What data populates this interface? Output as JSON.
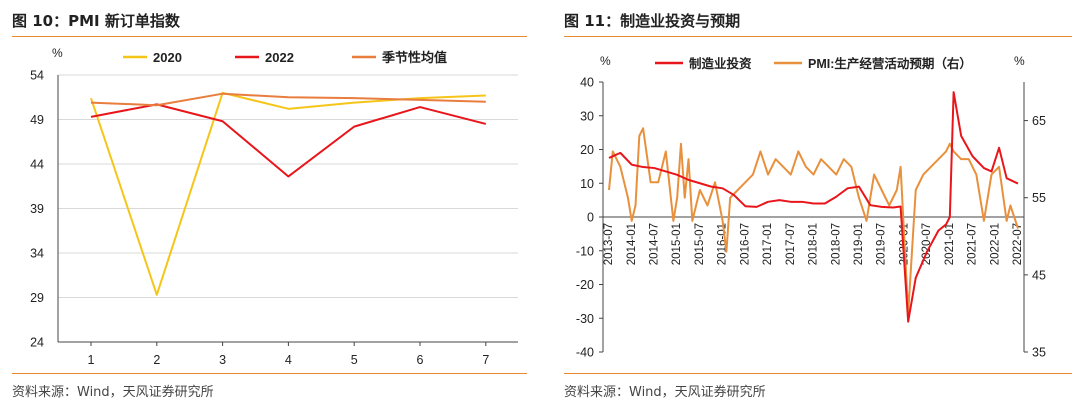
{
  "chart_data": [
    {
      "type": "line",
      "title": "图 10：PMI 新订单指数",
      "source": "资料来源：Wind，天风证券研究所",
      "ylabel": "%",
      "ylim": [
        24,
        54
      ],
      "yticks": [
        24,
        29,
        34,
        39,
        44,
        49,
        54
      ],
      "categories": [
        "1",
        "2",
        "3",
        "4",
        "5",
        "6",
        "7"
      ],
      "grid": true,
      "legend": "top",
      "series": [
        {
          "name": "2020",
          "color": "#f5c518",
          "values": [
            51.4,
            29.3,
            52.0,
            50.2,
            50.9,
            51.4,
            51.7
          ]
        },
        {
          "name": "2022",
          "color": "#e8161b",
          "values": [
            49.3,
            50.7,
            48.8,
            42.6,
            48.2,
            50.4,
            48.5
          ]
        },
        {
          "name": "季节性均值",
          "color": "#e87d3e",
          "values": [
            50.9,
            50.6,
            51.9,
            51.5,
            51.4,
            51.2,
            51.0
          ]
        }
      ]
    },
    {
      "type": "line",
      "title": "图 11：制造业投资与预期",
      "source": "资料来源：Wind，天风证券研究所",
      "ylabel_left": "%",
      "ylabel_right": "%",
      "ylim_left": [
        -40,
        40
      ],
      "yticks_left": [
        -40,
        -30,
        -20,
        -10,
        0,
        10,
        20,
        30,
        40
      ],
      "ylim_right": [
        35,
        70
      ],
      "yticks_right": [
        35,
        45,
        55,
        65
      ],
      "x_tick_labels": [
        "2013-07",
        "2014-01",
        "2014-07",
        "2015-01",
        "2015-07",
        "2016-01",
        "2016-07",
        "2017-01",
        "2017-07",
        "2018-01",
        "2018-07",
        "2019-01",
        "2019-07",
        "2020-01",
        "2020-07",
        "2021-01",
        "2021-07",
        "2022-01",
        "2022-07"
      ],
      "legend": "top",
      "series": [
        {
          "name": "制造业投资",
          "axis": "left",
          "color": "#e8161b",
          "x": [
            "2013-07",
            "2013-10",
            "2014-01",
            "2014-04",
            "2014-07",
            "2014-10",
            "2015-01",
            "2015-04",
            "2015-07",
            "2015-10",
            "2016-01",
            "2016-04",
            "2016-07",
            "2016-10",
            "2017-01",
            "2017-04",
            "2017-07",
            "2017-10",
            "2018-01",
            "2018-04",
            "2018-07",
            "2018-10",
            "2019-01",
            "2019-04",
            "2019-07",
            "2019-10",
            "2019-12",
            "2020-02",
            "2020-04",
            "2020-07",
            "2020-10",
            "2020-12",
            "2021-01",
            "2021-02",
            "2021-04",
            "2021-07",
            "2021-10",
            "2021-12",
            "2022-02",
            "2022-04",
            "2022-07"
          ],
          "values": [
            17.5,
            19,
            15.5,
            14.8,
            14.5,
            13.5,
            12.5,
            11,
            10,
            9,
            8.5,
            6.5,
            3.2,
            3,
            4.5,
            5,
            4.5,
            4.5,
            4,
            4,
            6,
            8.5,
            9,
            3.5,
            3,
            2.8,
            3.1,
            -31,
            -18,
            -10.2,
            -4,
            -2.2,
            0,
            37,
            24,
            18,
            14.5,
            13.5,
            20.5,
            11.5,
            9.9
          ]
        },
        {
          "name": "PMI:生产经营活动预期（右）",
          "axis": "right",
          "color": "#e8903c",
          "x": [
            "2013-07",
            "2013-08",
            "2013-10",
            "2013-12",
            "2014-01",
            "2014-02",
            "2014-03",
            "2014-04",
            "2014-06",
            "2014-08",
            "2014-10",
            "2014-12",
            "2015-01",
            "2015-02",
            "2015-03",
            "2015-04",
            "2015-05",
            "2015-07",
            "2015-09",
            "2015-11",
            "2016-01",
            "2016-02",
            "2016-03",
            "2016-05",
            "2016-07",
            "2016-09",
            "2016-11",
            "2017-01",
            "2017-03",
            "2017-05",
            "2017-07",
            "2017-09",
            "2017-11",
            "2018-01",
            "2018-03",
            "2018-05",
            "2018-07",
            "2018-09",
            "2018-11",
            "2019-01",
            "2019-03",
            "2019-05",
            "2019-07",
            "2019-09",
            "2019-11",
            "2019-12",
            "2020-02",
            "2020-04",
            "2020-06",
            "2020-08",
            "2020-10",
            "2020-12",
            "2021-01",
            "2021-02",
            "2021-04",
            "2021-06",
            "2021-08",
            "2021-10",
            "2021-12",
            "2022-02",
            "2022-04",
            "2022-05",
            "2022-07"
          ],
          "values": [
            56,
            61,
            59,
            55,
            52,
            54,
            63,
            64,
            57,
            57,
            61,
            52,
            55,
            62,
            55,
            60,
            52,
            56,
            54,
            57,
            52,
            48,
            55,
            56,
            57,
            58,
            61,
            58,
            60,
            59,
            58,
            61,
            59,
            58,
            60,
            59,
            58,
            60,
            59,
            55,
            52,
            58,
            56,
            54,
            56,
            59,
            40,
            56,
            58,
            59,
            60,
            61,
            62,
            61,
            60,
            60,
            58,
            52,
            58,
            59,
            52,
            54,
            51
          ]
        }
      ]
    }
  ]
}
